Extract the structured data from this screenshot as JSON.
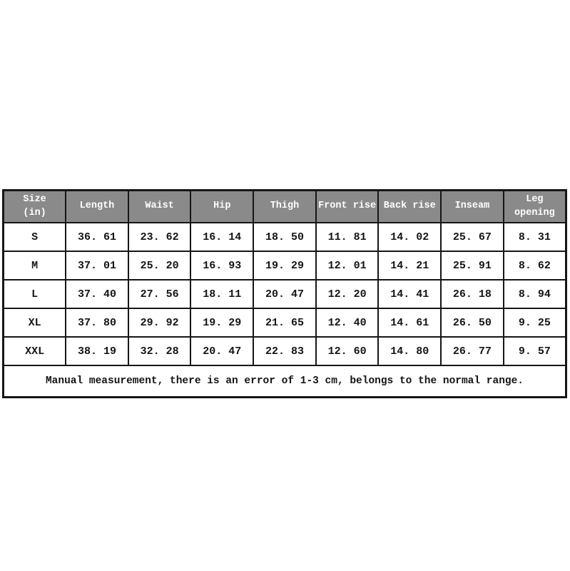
{
  "colors": {
    "header_bg": "#8a8a8a",
    "header_text": "#ffffff",
    "border": "#161616",
    "cell_text": "#141414",
    "page_bg": "#ffffff"
  },
  "display": {
    "header": [
      "Size\n(in)",
      "Length",
      "Waist",
      "Hip",
      "Thigh",
      "Front rise",
      "Back rise",
      "Inseam",
      "Leg opening"
    ],
    "rows": [
      [
        "S",
        "36. 61",
        "23. 62",
        "16. 14",
        "18. 50",
        "11. 81",
        "14. 02",
        "25. 67",
        "8. 31"
      ],
      [
        "M",
        "37. 01",
        "25. 20",
        "16. 93",
        "19. 29",
        "12. 01",
        "14. 21",
        "25. 91",
        "8. 62"
      ],
      [
        "L",
        "37. 40",
        "27. 56",
        "18. 11",
        "20. 47",
        "12. 20",
        "14. 41",
        "26. 18",
        "8. 94"
      ],
      [
        "XL",
        "37. 80",
        "29. 92",
        "19. 29",
        "21. 65",
        "12. 40",
        "14. 61",
        "26. 50",
        "9. 25"
      ],
      [
        "XXL",
        "38. 19",
        "32. 28",
        "20. 47",
        "22. 83",
        "12. 60",
        "14. 80",
        "26. 77",
        "9. 57"
      ]
    ],
    "note": "Manual measurement, there is an error of 1-3 cm, belongs to the normal range."
  },
  "chart_data": {
    "type": "table",
    "columns": [
      "Size (in)",
      "Length",
      "Waist",
      "Hip",
      "Thigh",
      "Front rise",
      "Back rise",
      "Inseam",
      "Leg opening"
    ],
    "rows": [
      [
        "S",
        36.61,
        23.62,
        16.14,
        18.5,
        11.81,
        14.02,
        25.67,
        8.31
      ],
      [
        "M",
        37.01,
        25.2,
        16.93,
        19.29,
        12.01,
        14.21,
        25.91,
        8.62
      ],
      [
        "L",
        37.4,
        27.56,
        18.11,
        20.47,
        12.2,
        14.41,
        26.18,
        8.94
      ],
      [
        "XL",
        37.8,
        29.92,
        19.29,
        21.65,
        12.4,
        14.61,
        26.5,
        9.25
      ],
      [
        "XXL",
        38.19,
        32.28,
        20.47,
        22.83,
        12.6,
        14.8,
        26.77,
        9.57
      ]
    ],
    "note": "Manual measurement, there is an error of 1-3 cm, belongs to the normal range.",
    "units": "inches"
  }
}
